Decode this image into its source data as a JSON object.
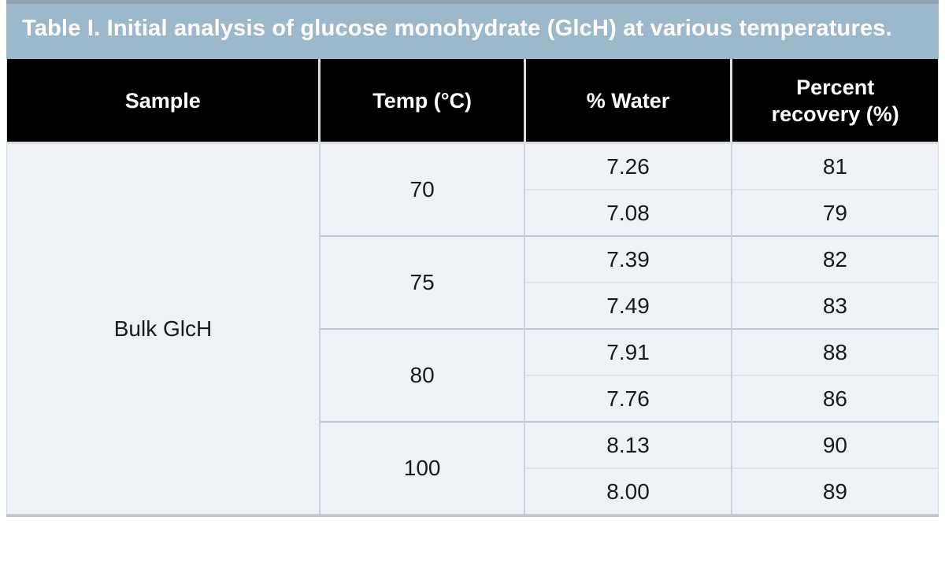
{
  "title": "Table I. Initial analysis of glucose monohydrate (GlcH) at various temperatures.",
  "table": {
    "columns": [
      "Sample",
      "Temp (°C)",
      "% Water",
      "Percent recovery (%)"
    ],
    "sample": "Bulk GlcH",
    "groups": [
      {
        "temp": "70",
        "rows": [
          {
            "water": "7.26",
            "recovery": "81"
          },
          {
            "water": "7.08",
            "recovery": "79"
          }
        ]
      },
      {
        "temp": "75",
        "rows": [
          {
            "water": "7.39",
            "recovery": "82"
          },
          {
            "water": "7.49",
            "recovery": "83"
          }
        ]
      },
      {
        "temp": "80",
        "rows": [
          {
            "water": "7.91",
            "recovery": "88"
          },
          {
            "water": "7.76",
            "recovery": "86"
          }
        ]
      },
      {
        "temp": "100",
        "rows": [
          {
            "water": "8.13",
            "recovery": "90"
          },
          {
            "water": "8.00",
            "recovery": "89"
          }
        ]
      }
    ]
  },
  "chart_data": {
    "type": "table",
    "title": "Table I. Initial analysis of glucose monohydrate (GlcH) at various temperatures.",
    "columns": [
      "Sample",
      "Temp (°C)",
      "% Water",
      "Percent recovery (%)"
    ],
    "rows": [
      [
        "Bulk GlcH",
        70,
        7.26,
        81
      ],
      [
        "Bulk GlcH",
        70,
        7.08,
        79
      ],
      [
        "Bulk GlcH",
        75,
        7.39,
        82
      ],
      [
        "Bulk GlcH",
        75,
        7.49,
        83
      ],
      [
        "Bulk GlcH",
        80,
        7.91,
        88
      ],
      [
        "Bulk GlcH",
        80,
        7.76,
        86
      ],
      [
        "Bulk GlcH",
        100,
        8.13,
        90
      ],
      [
        "Bulk GlcH",
        100,
        8.0,
        89
      ]
    ]
  },
  "colors": {
    "title_bg": "#9cb8cb",
    "title_top_edge": "#91a3b1",
    "title_text": "#ffffff",
    "header_bg": "#000000",
    "header_text": "#ffffff",
    "body_bg": "#eef1f5",
    "grid_line": "#c7d3de",
    "group_line": "#bdc9d5",
    "sub_line": "#dde4ea",
    "bottom_edge": "#c6c9cc"
  }
}
